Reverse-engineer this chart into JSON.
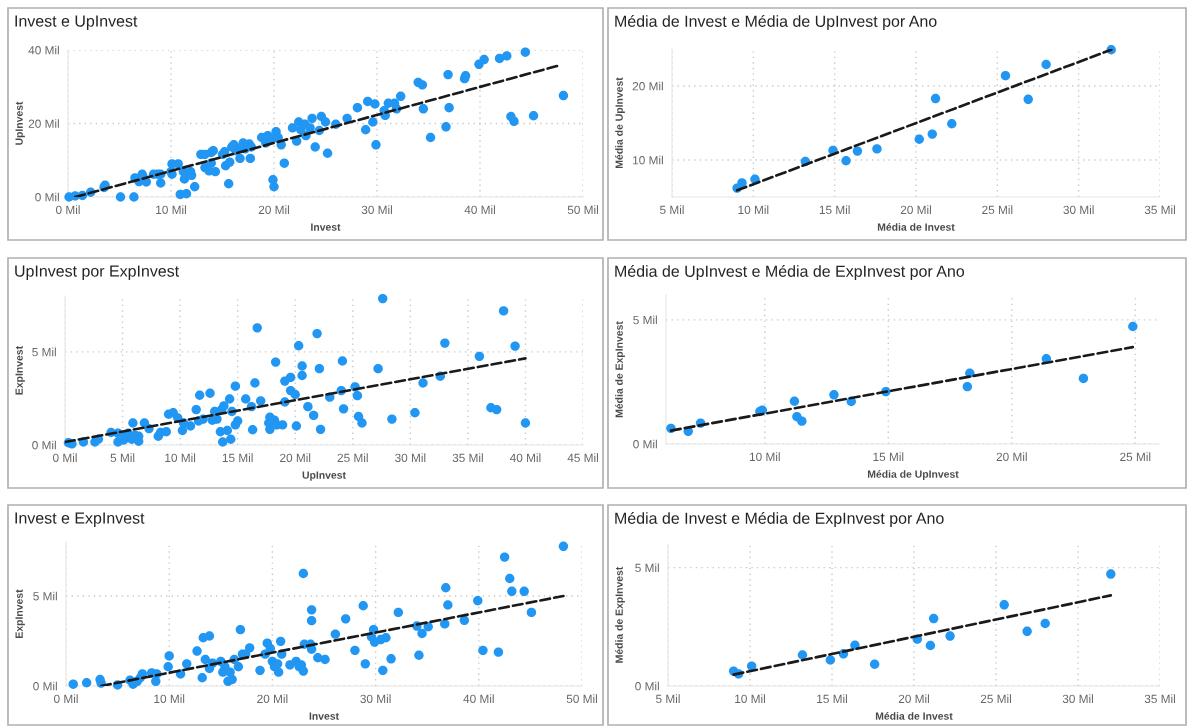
{
  "chart_data": [
    {
      "type": "scatter",
      "title": "Invest e UpInvest",
      "xlabel": "Invest",
      "ylabel": "UpInvest",
      "xlim": [
        0,
        50
      ],
      "ylim": [
        0,
        40
      ],
      "xticks": [
        {
          "value": 0,
          "label": "0 Mil"
        },
        {
          "value": 10,
          "label": "10 Mil"
        },
        {
          "value": 20,
          "label": "20 Mil"
        },
        {
          "value": 30,
          "label": "30 Mil"
        },
        {
          "value": 40,
          "label": "40 Mil"
        },
        {
          "value": 50,
          "label": "50 Mil"
        }
      ],
      "yticks": [
        {
          "value": 0,
          "label": "0 Mil"
        },
        {
          "value": 20,
          "label": "20 Mil"
        },
        {
          "value": 40,
          "label": "40 Mil"
        }
      ],
      "grid": true,
      "series": [
        {
          "color": "#2196f3",
          "marker": "circle",
          "x": [
            0.1,
            0.7,
            1.4,
            2.2,
            3.5,
            3.6,
            5.1,
            6.4,
            6.5,
            6.9,
            7.2,
            7.3,
            7.6,
            8.3,
            8.7,
            9.0,
            9.0,
            10.0,
            10.1,
            10.1,
            10.7,
            10.9,
            11.2,
            11.3,
            11.5,
            11.9,
            12.0,
            12.3,
            12.9,
            13.3,
            13.3,
            13.7,
            13.9,
            13.9,
            14.1,
            14.3,
            15.0,
            15.2,
            15.3,
            15.6,
            15.7,
            15.9,
            16.1,
            16.3,
            16.7,
            16.9,
            17.0,
            17.2,
            17.6,
            17.7,
            17.8,
            18.8,
            19.2,
            19.4,
            19.8,
            19.9,
            20.0,
            20.2,
            20.4,
            20.7,
            21.0,
            21.8,
            22.2,
            22.4,
            22.6,
            23.0,
            23.1,
            23.5,
            23.7,
            24.0,
            24.4,
            24.6,
            25.0,
            25.2,
            26.0,
            27.1,
            28.1,
            28.9,
            29.1,
            29.6,
            29.8,
            29.9,
            30.7,
            30.8,
            31.1,
            31.7,
            31.9,
            32.3,
            34.0,
            34.4,
            34.5,
            35.2,
            36.7,
            36.9,
            37.0,
            38.5,
            38.6,
            39.9,
            40.4,
            41.9,
            42.6,
            43.0,
            43.3,
            44.4,
            45.2,
            48.1
          ],
          "values": [
            0.0,
            0.3,
            0.4,
            1.3,
            2.6,
            3.2,
            0.0,
            0.0,
            5.2,
            4.2,
            6.2,
            5.4,
            4.1,
            6.2,
            6.2,
            3.8,
            6.2,
            6.9,
            9.0,
            6.2,
            9.0,
            0.7,
            6.9,
            4.9,
            0.9,
            6.9,
            5.9,
            2.8,
            11.6,
            11.6,
            8.0,
            7.1,
            9.2,
            12.1,
            12.6,
            6.9,
            11.6,
            12.3,
            8.5,
            3.6,
            9.5,
            13.6,
            14.2,
            12.6,
            10.5,
            13.6,
            14.7,
            13.1,
            14.4,
            10.5,
            13.6,
            16.2,
            14.7,
            16.7,
            15.7,
            4.7,
            2.8,
            17.8,
            16.2,
            14.2,
            9.2,
            18.8,
            15.2,
            20.4,
            18.3,
            19.8,
            16.7,
            18.8,
            21.4,
            13.6,
            18.1,
            21.9,
            20.4,
            11.9,
            19.8,
            21.4,
            24.3,
            18.3,
            26.0,
            20.4,
            25.3,
            14.2,
            23.5,
            22.2,
            25.5,
            25.5,
            24.0,
            27.4,
            31.2,
            30.5,
            24.0,
            16.2,
            19.1,
            33.3,
            24.3,
            32.2,
            33.0,
            36.1,
            37.4,
            37.7,
            38.4,
            21.9,
            20.6,
            39.4,
            22.1,
            27.6
          ]
        },
        {
          "type": "line",
          "color": "#1a1a1a",
          "line_style": "dashed",
          "x": [
            0.7,
            47.8
          ],
          "values": [
            0.0,
            35.9
          ]
        }
      ]
    },
    {
      "type": "scatter",
      "title": "Média de Invest e Média de UpInvest por Ano",
      "xlabel": "Média de Invest",
      "ylabel": "Média de UpInvest",
      "xlim": [
        5,
        35
      ],
      "ylim": [
        5,
        25
      ],
      "xticks": [
        {
          "value": 5,
          "label": "5 Mil"
        },
        {
          "value": 10,
          "label": "10 Mil"
        },
        {
          "value": 15,
          "label": "15 Mil"
        },
        {
          "value": 20,
          "label": "20 Mil"
        },
        {
          "value": 25,
          "label": "25 Mil"
        },
        {
          "value": 30,
          "label": "30 Mil"
        },
        {
          "value": 35,
          "label": "35 Mil"
        }
      ],
      "yticks": [
        {
          "value": 10,
          "label": "10 Mil"
        },
        {
          "value": 20,
          "label": "20 Mil"
        }
      ],
      "grid": true,
      "series": [
        {
          "color": "#2196f3",
          "marker": "circle",
          "x": [
            9.0,
            9.3,
            10.1,
            13.2,
            14.9,
            15.7,
            16.4,
            17.6,
            20.2,
            21.0,
            21.2,
            22.2,
            25.5,
            26.9,
            28.0,
            32.0
          ],
          "values": [
            6.2,
            6.9,
            7.4,
            9.8,
            11.3,
            9.9,
            11.2,
            11.5,
            12.8,
            13.5,
            18.3,
            14.9,
            21.4,
            18.2,
            22.9,
            24.9
          ]
        },
        {
          "type": "line",
          "color": "#1a1a1a",
          "line_style": "dashed",
          "x": [
            9.0,
            32.0
          ],
          "values": [
            5.9,
            24.9
          ]
        }
      ]
    },
    {
      "type": "scatter",
      "title": "UpInvest por ExpInvest",
      "xlabel": "UpInvest",
      "ylabel": "ExpInvest",
      "xlim": [
        0,
        45
      ],
      "ylim": [
        0,
        8
      ],
      "xticks": [
        {
          "value": 0,
          "label": "0 Mil"
        },
        {
          "value": 5,
          "label": "5 Mil"
        },
        {
          "value": 10,
          "label": "10 Mil"
        },
        {
          "value": 15,
          "label": "15 Mil"
        },
        {
          "value": 20,
          "label": "20 Mil"
        },
        {
          "value": 25,
          "label": "25 Mil"
        },
        {
          "value": 30,
          "label": "30 Mil"
        },
        {
          "value": 35,
          "label": "35 Mil"
        },
        {
          "value": 40,
          "label": "40 Mil"
        },
        {
          "value": 45,
          "label": "45 Mil"
        }
      ],
      "yticks": [
        {
          "value": 0,
          "label": "0 Mil"
        },
        {
          "value": 5,
          "label": "5 Mil"
        }
      ],
      "grid": true,
      "series": [
        {
          "color": "#2196f3",
          "marker": "circle",
          "x": [
            0.3,
            0.6,
            1.6,
            2.6,
            2.9,
            4.0,
            4.6,
            4.6,
            5.1,
            5.3,
            5.5,
            5.8,
            5.9,
            6.1,
            6.4,
            6.4,
            6.9,
            7.3,
            8.1,
            8.3,
            8.8,
            9.0,
            9.4,
            9.8,
            10.2,
            10.3,
            10.9,
            11.4,
            11.6,
            11.7,
            12.0,
            12.6,
            12.8,
            13.0,
            13.2,
            13.5,
            13.6,
            13.7,
            13.8,
            14.1,
            14.3,
            14.4,
            14.5,
            14.8,
            14.8,
            15.0,
            15.7,
            16.2,
            16.3,
            16.5,
            16.7,
            17.0,
            17.7,
            17.8,
            17.8,
            18.2,
            18.3,
            18.4,
            18.9,
            19.1,
            19.1,
            19.6,
            19.6,
            20.0,
            20.1,
            20.3,
            20.6,
            20.6,
            21.1,
            21.6,
            21.9,
            22.1,
            22.2,
            23.0,
            24.0,
            24.1,
            24.2,
            25.2,
            25.4,
            25.5,
            25.8,
            27.2,
            27.6,
            28.4,
            30.4,
            31.1,
            32.6,
            33.0,
            36.0,
            37.0,
            37.5,
            38.1,
            39.1,
            40.0
          ],
          "values": [
            0.12,
            0.06,
            0.16,
            0.16,
            0.31,
            0.67,
            0.16,
            0.63,
            0.27,
            0.51,
            0.63,
            0.31,
            1.18,
            0.51,
            0.47,
            0.2,
            1.18,
            0.88,
            0.47,
            0.67,
            0.71,
            1.65,
            1.73,
            1.45,
            0.78,
            1.18,
            1.02,
            1.9,
            1.29,
            2.67,
            1.39,
            2.78,
            1.33,
            1.8,
            1.39,
            0.71,
            1.9,
            0.16,
            2.1,
            0.78,
            2.47,
            0.31,
            1.8,
            3.16,
            1.08,
            1.29,
            2.47,
            2.06,
            0.82,
            3.33,
            6.29,
            2.37,
            1.18,
            1.49,
            0.84,
            1.33,
            4.45,
            1.08,
            1.08,
            3.43,
            2.31,
            3.63,
            2.92,
            2.71,
            1.02,
            5.33,
            4.24,
            3.73,
            2.06,
            1.59,
            5.98,
            4.1,
            0.84,
            2.57,
            2.92,
            4.51,
            1.94,
            3.12,
            2.65,
            1.53,
            1.18,
            4.1,
            7.86,
            1.39,
            1.73,
            3.33,
            3.69,
            5.47,
            4.76,
            2.0,
            1.9,
            7.2,
            5.31,
            1.18
          ]
        },
        {
          "type": "line",
          "color": "#1a1a1a",
          "line_style": "dashed",
          "x": [
            0.0,
            40.0
          ],
          "values": [
            0.16,
            4.65
          ]
        }
      ]
    },
    {
      "type": "scatter",
      "title": "Média de UpInvest e Média de ExpInvest por Ano",
      "xlabel": "Média de UpInvest",
      "ylabel": "Média de ExpInvest",
      "xlim": [
        6,
        26
      ],
      "ylim": [
        0,
        6
      ],
      "xticks": [
        {
          "value": 10,
          "label": "10 Mil"
        },
        {
          "value": 15,
          "label": "15 Mil"
        },
        {
          "value": 20,
          "label": "20 Mil"
        },
        {
          "value": 25,
          "label": "25 Mil"
        }
      ],
      "yticks": [
        {
          "value": 0,
          "label": "0 Mil"
        },
        {
          "value": 5,
          "label": "5 Mil"
        }
      ],
      "grid": true,
      "series": [
        {
          "color": "#2196f3",
          "marker": "circle",
          "x": [
            6.2,
            6.9,
            7.4,
            9.8,
            11.3,
            9.9,
            11.2,
            11.5,
            12.8,
            13.5,
            18.3,
            14.9,
            21.4,
            18.2,
            22.9,
            24.9
          ],
          "values": [
            0.63,
            0.51,
            0.84,
            1.31,
            1.1,
            1.36,
            1.72,
            0.92,
            1.98,
            1.71,
            2.85,
            2.11,
            3.43,
            2.31,
            2.64,
            4.73
          ]
        },
        {
          "type": "line",
          "color": "#1a1a1a",
          "line_style": "dashed",
          "x": [
            6.2,
            24.9
          ],
          "values": [
            0.54,
            3.9
          ]
        }
      ]
    },
    {
      "type": "scatter",
      "title": "Invest e ExpInvest",
      "xlabel": "Invest",
      "ylabel": "ExpInvest",
      "xlim": [
        0,
        50
      ],
      "ylim": [
        0,
        8
      ],
      "xticks": [
        {
          "value": 0,
          "label": "0 Mil"
        },
        {
          "value": 10,
          "label": "10 Mil"
        },
        {
          "value": 20,
          "label": "20 Mil"
        },
        {
          "value": 30,
          "label": "30 Mil"
        },
        {
          "value": 40,
          "label": "40 Mil"
        },
        {
          "value": 50,
          "label": "50 Mil"
        }
      ],
      "yticks": [
        {
          "value": 0,
          "label": "0 Mil"
        },
        {
          "value": 5,
          "label": "5 Mil"
        }
      ],
      "grid": true,
      "series": [
        {
          "color": "#2196f3",
          "marker": "circle",
          "x": [
            0.7,
            2.0,
            3.3,
            3.4,
            5.0,
            6.2,
            6.5,
            6.9,
            7.2,
            7.4,
            8.3,
            8.7,
            8.8,
            9.9,
            10.0,
            11.1,
            11.7,
            12.7,
            13.2,
            13.3,
            13.5,
            13.9,
            13.9,
            14.2,
            15.0,
            15.2,
            15.4,
            15.7,
            15.9,
            16.1,
            16.3,
            16.7,
            16.9,
            17.1,
            17.4,
            17.8,
            18.8,
            19.3,
            19.5,
            19.8,
            20.0,
            20.2,
            20.5,
            20.6,
            20.8,
            20.9,
            21.7,
            22.3,
            22.6,
            22.8,
            23.0,
            23.0,
            23.1,
            23.7,
            23.8,
            23.8,
            23.8,
            24.4,
            25.1,
            26.1,
            27.1,
            28.0,
            28.8,
            29.0,
            29.6,
            29.8,
            29.9,
            30.7,
            30.5,
            31.0,
            31.5,
            32.2,
            34.0,
            34.2,
            34.5,
            35.1,
            36.7,
            36.8,
            37.0,
            38.6,
            39.9,
            40.4,
            41.9,
            42.5,
            43.0,
            43.2,
            44.4,
            45.1,
            48.2
          ],
          "values": [
            0.1,
            0.18,
            0.36,
            0.16,
            0.06,
            0.32,
            0.1,
            0.26,
            0.46,
            0.67,
            0.73,
            0.26,
            0.67,
            1.07,
            1.67,
            0.67,
            1.23,
            1.94,
            0.46,
            2.68,
            1.47,
            2.78,
            0.97,
            1.27,
            1.37,
            0.77,
            1.07,
            0.26,
            0.77,
            0.36,
            1.47,
            1.07,
            3.13,
            1.77,
            1.77,
            2.12,
            0.87,
            1.77,
            2.38,
            2.08,
            1.37,
            1.07,
            1.23,
            0.77,
            2.48,
            1.77,
            1.17,
            1.37,
            1.07,
            1.17,
            6.25,
            0.83,
            2.32,
            2.32,
            3.63,
            4.23,
            2.04,
            1.57,
            1.47,
            2.88,
            3.73,
            1.98,
            4.46,
            1.23,
            2.72,
            3.13,
            2.44,
            0.87,
            2.58,
            2.68,
            1.51,
            4.09,
            3.33,
            1.71,
            2.92,
            3.29,
            3.45,
            5.46,
            4.5,
            3.65,
            4.74,
            1.98,
            1.88,
            7.16,
            5.97,
            5.26,
            5.26,
            4.09,
            7.76
          ]
        },
        {
          "type": "line",
          "color": "#1a1a1a",
          "line_style": "dashed",
          "x": [
            3.4,
            48.2
          ],
          "values": [
            0.0,
            5.0
          ]
        }
      ]
    },
    {
      "type": "scatter",
      "title": "Média de Invest e Média de ExpInvest por Ano",
      "xlabel": "Média de Invest",
      "ylabel": "Média de ExpInvest",
      "xlim": [
        5,
        35
      ],
      "ylim": [
        0,
        6
      ],
      "xticks": [
        {
          "value": 5,
          "label": "5 Mil"
        },
        {
          "value": 10,
          "label": "10 Mil"
        },
        {
          "value": 15,
          "label": "15 Mil"
        },
        {
          "value": 20,
          "label": "20 Mil"
        },
        {
          "value": 25,
          "label": "25 Mil"
        },
        {
          "value": 30,
          "label": "30 Mil"
        },
        {
          "value": 35,
          "label": "35 Mil"
        }
      ],
      "yticks": [
        {
          "value": 0,
          "label": "0 Mil"
        },
        {
          "value": 5,
          "label": "5 Mil"
        }
      ],
      "grid": true,
      "series": [
        {
          "color": "#2196f3",
          "marker": "circle",
          "x": [
            9.0,
            9.3,
            10.1,
            13.2,
            14.9,
            15.7,
            16.4,
            17.6,
            20.2,
            21.0,
            21.2,
            22.2,
            25.5,
            26.9,
            28.0,
            32.0
          ],
          "values": [
            0.63,
            0.51,
            0.84,
            1.31,
            1.1,
            1.36,
            1.72,
            0.92,
            1.98,
            1.71,
            2.85,
            2.11,
            3.43,
            2.31,
            2.64,
            4.73
          ]
        },
        {
          "type": "line",
          "color": "#1a1a1a",
          "line_style": "dashed",
          "x": [
            9.0,
            32.0
          ],
          "values": [
            0.48,
            3.83
          ]
        }
      ]
    }
  ]
}
